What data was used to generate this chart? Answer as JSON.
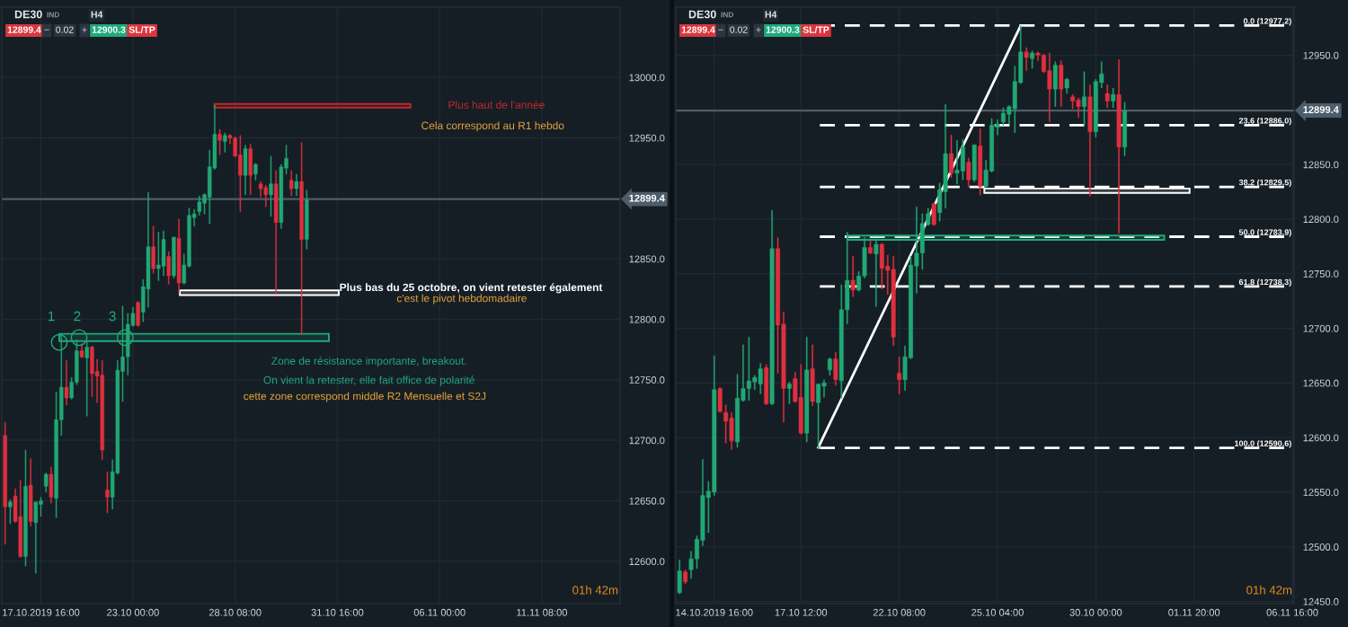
{
  "chart_data": [
    {
      "type": "candlestick",
      "title": "DE30",
      "categories": [
        null,
        null,
        null,
        null,
        null,
        null,
        null,
        "17.10.2019 16:00",
        null,
        null,
        null,
        null,
        null,
        null,
        null,
        null,
        null,
        null,
        null,
        null,
        null,
        null,
        null,
        null,
        null,
        "23.10 00:00",
        null,
        null,
        null,
        null,
        null,
        null,
        null,
        null,
        null,
        null,
        null,
        null,
        null,
        null,
        null,
        null,
        null,
        null,
        null,
        "28.10 08:00",
        null,
        null,
        null,
        null,
        null,
        null,
        null,
        null,
        null,
        null,
        null,
        null,
        null,
        null,
        null,
        null,
        null,
        null,
        null,
        "31.10 16:00",
        null,
        null,
        null,
        null,
        null,
        null,
        null,
        null,
        null,
        null,
        null,
        null,
        null,
        null,
        null,
        null,
        null,
        null,
        null,
        "06.11 00:00",
        null,
        null,
        null,
        null,
        null,
        null,
        null,
        null,
        null,
        null,
        null,
        null,
        null,
        null,
        null,
        null,
        null,
        null,
        null,
        "11.11 08:00",
        null,
        null,
        null,
        null,
        null,
        null,
        null,
        null,
        null,
        null,
        null,
        null,
        null,
        null,
        null
      ],
      "ohlc": [
        [
          12704,
          12715,
          12614,
          12645
        ],
        [
          12645,
          12651,
          12631,
          12649
        ],
        [
          12654,
          12660,
          12632,
          12633
        ],
        [
          12637,
          12667,
          12603,
          12604
        ],
        [
          12604,
          12692,
          12596,
          12662
        ],
        [
          12663,
          12685,
          12629,
          12633
        ],
        [
          12632,
          12649,
          12590,
          12649
        ],
        [
          12647,
          12653,
          12637,
          12650
        ],
        [
          12662,
          12673,
          12657,
          12672
        ],
        [
          12672,
          12678,
          12648,
          12653
        ],
        [
          12652,
          12740,
          12636,
          12717
        ],
        [
          12717,
          12788,
          12704,
          12744
        ],
        [
          12744,
          12766,
          12729,
          12735
        ],
        [
          12735,
          12752,
          12734,
          12748
        ],
        [
          12748,
          12783,
          12746,
          12774
        ],
        [
          12774,
          12780,
          12768,
          12769
        ],
        [
          12768,
          12782,
          12720,
          12777
        ],
        [
          12777,
          12778,
          12736,
          12755
        ],
        [
          12757,
          12767,
          12731,
          12753
        ],
        [
          12754,
          12766,
          12684,
          12692
        ],
        [
          12659,
          12674,
          12640,
          12653
        ],
        [
          12653,
          12684,
          12643,
          12674
        ],
        [
          12673,
          12766,
          12672,
          12758
        ],
        [
          12757,
          12811,
          12732,
          12769
        ],
        [
          12769,
          12805,
          12754,
          12796
        ],
        [
          12795,
          12810,
          12794,
          12805
        ],
        [
          12814,
          12815,
          12794,
          12795
        ],
        [
          12806,
          12833,
          12798,
          12827
        ],
        [
          12825,
          12905,
          12810,
          12860
        ],
        [
          12860,
          12877,
          12838,
          12842
        ],
        [
          12842,
          12872,
          12832,
          12845
        ],
        [
          12844,
          12873,
          12836,
          12866
        ],
        [
          12852,
          12856,
          12829,
          12836
        ],
        [
          12836,
          12868,
          12834,
          12868
        ],
        [
          12867,
          12883,
          12822,
          12830
        ],
        [
          12830,
          12854,
          12829,
          12845
        ],
        [
          12844,
          12892,
          12843,
          12886
        ],
        [
          12884,
          12891,
          12877,
          12887
        ],
        [
          12889,
          12902,
          12886,
          12897
        ],
        [
          12896,
          12904,
          12887,
          12903
        ],
        [
          12901,
          12940,
          12879,
          12926
        ],
        [
          12925,
          12977,
          12924,
          12953
        ],
        [
          12953,
          12957,
          12936,
          12948
        ],
        [
          12947,
          12954,
          12938,
          12952
        ],
        [
          12952,
          12953,
          12945,
          12950
        ],
        [
          12950,
          12951,
          12934,
          12935
        ],
        [
          12936,
          12952,
          12889,
          12919
        ],
        [
          12919,
          12944,
          12903,
          12941
        ],
        [
          12941,
          12945,
          12903,
          12919
        ],
        [
          12920,
          12929,
          12915,
          12928
        ],
        [
          12912,
          12914,
          12901,
          12908
        ],
        [
          12909,
          12911,
          12893,
          12903
        ],
        [
          12903,
          12935,
          12885,
          12912
        ],
        [
          12912,
          12923,
          12821,
          12880
        ],
        [
          12880,
          12928,
          12875,
          12926
        ],
        [
          12925,
          12944,
          12920,
          12933
        ],
        [
          12915,
          12923,
          12902,
          12908
        ],
        [
          12908,
          12920,
          12902,
          12914
        ],
        [
          12914,
          12946,
          12787,
          12866
        ],
        [
          12866,
          12907,
          12858,
          12899
        ],
        null,
        null,
        null,
        null,
        null,
        null,
        null,
        null,
        null,
        null,
        null,
        null,
        null,
        null,
        null,
        null,
        null,
        null,
        null,
        null,
        null,
        null,
        null,
        null,
        null,
        null,
        null,
        null,
        null,
        null,
        null,
        null,
        null,
        null,
        null,
        null,
        null,
        null,
        null,
        null,
        null,
        null,
        null,
        null,
        null,
        null,
        null,
        null,
        null,
        null,
        null,
        null,
        null,
        null,
        null,
        null,
        null,
        null,
        null,
        null,
        null
      ],
      "ylim": [
        12565,
        13058
      ],
      "yticks": [
        {
          "value": 13000,
          "label": "13000.0"
        },
        {
          "value": 12950,
          "label": "12950.0"
        },
        {
          "value": 12850,
          "label": "12850.0"
        },
        {
          "value": 12800,
          "label": "12800.0"
        },
        {
          "value": 12750,
          "label": "12750.0"
        },
        {
          "value": 12700,
          "label": "12700.0"
        },
        {
          "value": 12650,
          "label": "12650.0"
        },
        {
          "value": 12600,
          "label": "12600.0"
        }
      ],
      "grid": true,
      "ref_lines": [
        {
          "axis": "y",
          "value": 12899.4,
          "label": "12899.4",
          "color": "#4d5d6a",
          "line_style": "solid"
        }
      ],
      "bands": [
        {
          "axis": "y",
          "from": 12975,
          "to": 12978,
          "label": "Plus haut de l'année",
          "color": "#c0282d"
        },
        {
          "axis": "y",
          "from": 12820,
          "to": 12824,
          "label": "Plus bas du 25 octobre, on vient retester également",
          "color": "#ffffff"
        },
        {
          "axis": "y",
          "from": 12782,
          "to": 12788,
          "label": "Zone de résistance importante, breakout.",
          "color": "#1fa97a"
        }
      ],
      "annotations": [
        "IND",
        "H4",
        "12899.4",
        "−",
        "0.02",
        "+",
        "12900.3",
        "SL/TP",
        "01h 42m",
        "Cela correspond au R1 hebdo",
        "c'est le pivot hebdomadaire",
        "On vient la retester, elle fait office de polarité",
        "cette zone correspond middle R2 Mensuelle et S2J",
        "1",
        "2",
        "3"
      ]
    },
    {
      "type": "candlestick",
      "title": "DE30",
      "categories": [
        null,
        null,
        null,
        null,
        null,
        null,
        "14.10.2019 16:00",
        null,
        null,
        null,
        null,
        null,
        null,
        null,
        null,
        null,
        null,
        null,
        null,
        null,
        null,
        "17.10 12:00",
        null,
        null,
        null,
        null,
        null,
        null,
        null,
        null,
        null,
        null,
        null,
        null,
        null,
        null,
        null,
        null,
        "22.10 08:00",
        null,
        null,
        null,
        null,
        null,
        null,
        null,
        null,
        null,
        null,
        null,
        null,
        null,
        null,
        null,
        null,
        "25.10 04:00",
        null,
        null,
        null,
        null,
        null,
        null,
        null,
        null,
        null,
        null,
        null,
        null,
        null,
        null,
        null,
        null,
        "30.10 00:00",
        null,
        null,
        null,
        null,
        null,
        null,
        null,
        null,
        null,
        null,
        null,
        null,
        null,
        null,
        null,
        null,
        "01.11 20:00",
        null,
        null,
        null,
        null,
        null,
        null,
        null,
        null,
        null,
        null,
        null,
        null,
        null,
        null,
        null,
        null,
        "06.11 16:00"
      ],
      "ohlc": [
        [
          12458,
          12488,
          12457,
          12478
        ],
        [
          12477,
          12479,
          12466,
          12468
        ],
        [
          12479,
          12496,
          12471,
          12489
        ],
        [
          12489,
          12510,
          12480,
          12507
        ],
        [
          12506,
          12580,
          12501,
          12547
        ],
        [
          12545,
          12560,
          12513,
          12551
        ],
        [
          12550,
          12675,
          12547,
          12644
        ],
        [
          12645,
          12646,
          12623,
          12624
        ],
        [
          12623,
          12630,
          12595,
          12615
        ],
        [
          12618,
          12623,
          12589,
          12597
        ],
        [
          12596,
          12658,
          12591,
          12636
        ],
        [
          12634,
          12685,
          12633,
          12645
        ],
        [
          12645,
          12692,
          12634,
          12652
        ],
        [
          12651,
          12657,
          12644,
          12655
        ],
        [
          12649,
          12668,
          12640,
          12663
        ],
        [
          12664,
          12667,
          12630,
          12631
        ],
        [
          12631,
          12808,
          12630,
          12773
        ],
        [
          12773,
          12783,
          12659,
          12703
        ],
        [
          12704,
          12715,
          12614,
          12645
        ],
        [
          12645,
          12651,
          12631,
          12649
        ],
        [
          12654,
          12660,
          12632,
          12633
        ],
        [
          12637,
          12667,
          12603,
          12604
        ],
        [
          12604,
          12692,
          12596,
          12662
        ],
        [
          12663,
          12685,
          12629,
          12633
        ],
        [
          12632,
          12649,
          12590,
          12649
        ],
        [
          12647,
          12653,
          12637,
          12650
        ],
        [
          12662,
          12673,
          12657,
          12672
        ],
        [
          12672,
          12678,
          12648,
          12653
        ],
        [
          12652,
          12740,
          12636,
          12717
        ],
        [
          12717,
          12788,
          12704,
          12744
        ],
        [
          12744,
          12766,
          12729,
          12735
        ],
        [
          12735,
          12752,
          12734,
          12748
        ],
        [
          12748,
          12783,
          12746,
          12774
        ],
        [
          12774,
          12780,
          12768,
          12769
        ],
        [
          12768,
          12782,
          12720,
          12777
        ],
        [
          12777,
          12778,
          12736,
          12755
        ],
        [
          12757,
          12767,
          12731,
          12753
        ],
        [
          12754,
          12766,
          12684,
          12692
        ],
        [
          12659,
          12674,
          12640,
          12653
        ],
        [
          12653,
          12684,
          12643,
          12674
        ],
        [
          12673,
          12766,
          12672,
          12758
        ],
        [
          12757,
          12811,
          12732,
          12769
        ],
        [
          12769,
          12805,
          12754,
          12796
        ],
        [
          12795,
          12810,
          12794,
          12805
        ],
        [
          12814,
          12815,
          12794,
          12795
        ],
        [
          12806,
          12833,
          12798,
          12827
        ],
        [
          12825,
          12905,
          12810,
          12860
        ],
        [
          12860,
          12877,
          12838,
          12842
        ],
        [
          12842,
          12872,
          12832,
          12845
        ],
        [
          12844,
          12873,
          12836,
          12866
        ],
        [
          12852,
          12856,
          12829,
          12836
        ],
        [
          12836,
          12868,
          12834,
          12868
        ],
        [
          12867,
          12883,
          12822,
          12830
        ],
        [
          12830,
          12854,
          12829,
          12845
        ],
        [
          12844,
          12892,
          12843,
          12886
        ],
        [
          12884,
          12891,
          12877,
          12887
        ],
        [
          12889,
          12902,
          12886,
          12897
        ],
        [
          12896,
          12904,
          12887,
          12903
        ],
        [
          12901,
          12940,
          12879,
          12926
        ],
        [
          12925,
          12977,
          12924,
          12953
        ],
        [
          12953,
          12957,
          12936,
          12948
        ],
        [
          12947,
          12954,
          12938,
          12952
        ],
        [
          12952,
          12953,
          12945,
          12950
        ],
        [
          12950,
          12951,
          12934,
          12935
        ],
        [
          12936,
          12952,
          12889,
          12919
        ],
        [
          12919,
          12944,
          12903,
          12941
        ],
        [
          12941,
          12945,
          12903,
          12919
        ],
        [
          12920,
          12929,
          12915,
          12928
        ],
        [
          12912,
          12914,
          12901,
          12908
        ],
        [
          12909,
          12911,
          12893,
          12903
        ],
        [
          12903,
          12935,
          12885,
          12912
        ],
        [
          12912,
          12923,
          12821,
          12880
        ],
        [
          12880,
          12928,
          12875,
          12926
        ],
        [
          12925,
          12944,
          12920,
          12933
        ],
        [
          12915,
          12923,
          12902,
          12908
        ],
        [
          12908,
          12920,
          12902,
          12914
        ],
        [
          12914,
          12946,
          12787,
          12866
        ],
        [
          12866,
          12907,
          12858,
          12899
        ],
        null,
        null,
        null,
        null,
        null,
        null,
        null,
        null,
        null,
        null,
        null,
        null,
        null,
        null,
        null,
        null,
        null,
        null,
        null,
        null,
        null,
        null,
        null,
        null,
        null,
        null,
        null,
        null,
        null
      ],
      "series": [
        {
          "type": "line",
          "color": "#ffffff",
          "values": [
            null,
            null,
            null,
            null,
            null,
            null,
            null,
            null,
            null,
            null,
            null,
            null,
            null,
            null,
            null,
            null,
            null,
            null,
            null,
            null,
            null,
            null,
            null,
            null,
            12591,
            null,
            null,
            null,
            null,
            null,
            null,
            null,
            null,
            null,
            null,
            null,
            null,
            null,
            null,
            null,
            null,
            null,
            null,
            null,
            null,
            null,
            null,
            null,
            null,
            null,
            null,
            null,
            null,
            null,
            null,
            null,
            null,
            null,
            null,
            12977,
            null,
            null,
            null,
            null,
            null,
            null,
            null,
            null,
            null,
            null,
            null,
            null,
            null,
            null,
            null,
            null,
            null,
            null,
            null,
            null,
            null,
            null,
            null,
            null,
            null,
            null,
            null,
            null,
            null,
            null,
            null,
            null,
            null,
            null,
            null,
            null,
            null,
            null,
            null,
            null,
            null,
            null,
            null,
            null,
            null,
            null,
            null
          ]
        }
      ],
      "ylim": [
        12448,
        12994
      ],
      "yticks": [
        {
          "value": 12950,
          "label": "12950.0"
        },
        {
          "value": 12850,
          "label": "12850.0"
        },
        {
          "value": 12800,
          "label": "12800.0"
        },
        {
          "value": 12750,
          "label": "12750.0"
        },
        {
          "value": 12700,
          "label": "12700.0"
        },
        {
          "value": 12650,
          "label": "12650.0"
        },
        {
          "value": 12600,
          "label": "12600.0"
        },
        {
          "value": 12550,
          "label": "12550.0"
        },
        {
          "value": 12500,
          "label": "12500.0"
        },
        {
          "value": 12450,
          "label": "12450.0"
        }
      ],
      "grid": true,
      "ref_lines": [
        {
          "axis": "y",
          "value": 12899.4,
          "label": "12899.4",
          "color": "#4d5d6a",
          "line_style": "solid"
        },
        {
          "axis": "y",
          "value": 12977.2,
          "label": "0.0 (12977.2)",
          "color": "#ffffff",
          "line_style": "dashed"
        },
        {
          "axis": "y",
          "value": 12886.0,
          "label": "23.6 (12886.0)",
          "color": "#ffffff",
          "line_style": "dashed"
        },
        {
          "axis": "y",
          "value": 12829.5,
          "label": "38.2 (12829.5)",
          "color": "#ffffff",
          "line_style": "dashed"
        },
        {
          "axis": "y",
          "value": 12783.9,
          "label": "50.0 (12783.9)",
          "color": "#ffffff",
          "line_style": "dashed"
        },
        {
          "axis": "y",
          "value": 12738.3,
          "label": "61.8 (12738.3)",
          "color": "#ffffff",
          "line_style": "dashed"
        },
        {
          "axis": "y",
          "value": 12590.6,
          "label": "100.0 (12590.6)",
          "color": "#ffffff",
          "line_style": "dashed"
        }
      ],
      "bands": [
        {
          "axis": "y",
          "from": 12824,
          "to": 12828,
          "color": "#ffffff"
        },
        {
          "axis": "y",
          "from": 12781,
          "to": 12785,
          "color": "#1fa97a"
        }
      ],
      "annotations": [
        "IND",
        "H4",
        "12899.4",
        "−",
        "0.02",
        "+",
        "12900.3",
        "SL/TP",
        "01h 42m"
      ]
    }
  ]
}
